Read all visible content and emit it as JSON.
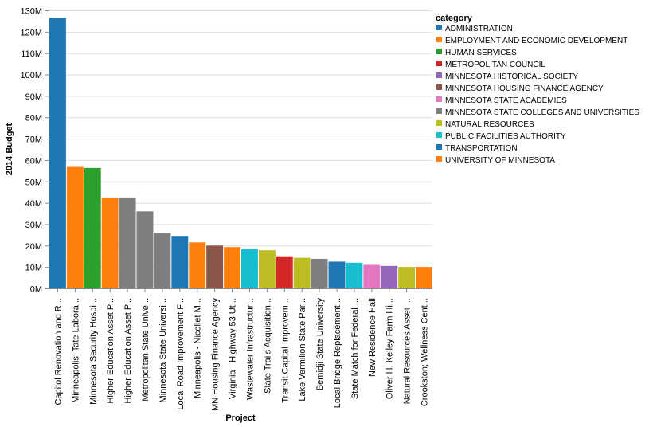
{
  "chart_data": {
    "type": "bar",
    "xlabel": "Project",
    "ylabel": "2014 Budget",
    "ylim": [
      0,
      130000000
    ],
    "yticks": [
      {
        "value": 0,
        "label": "0M"
      },
      {
        "value": 10000000,
        "label": "10M"
      },
      {
        "value": 20000000,
        "label": "20M"
      },
      {
        "value": 30000000,
        "label": "30M"
      },
      {
        "value": 40000000,
        "label": "40M"
      },
      {
        "value": 50000000,
        "label": "50M"
      },
      {
        "value": 60000000,
        "label": "60M"
      },
      {
        "value": 70000000,
        "label": "70M"
      },
      {
        "value": 80000000,
        "label": "80M"
      },
      {
        "value": 90000000,
        "label": "90M"
      },
      {
        "value": 100000000,
        "label": "100M"
      },
      {
        "value": 110000000,
        "label": "110M"
      },
      {
        "value": 120000000,
        "label": "120M"
      },
      {
        "value": 130000000,
        "label": "130M"
      }
    ],
    "grid": true,
    "legend": {
      "title": "category",
      "position": "right",
      "items": [
        {
          "label": "ADMINISTRATION",
          "color": "#1f77b4"
        },
        {
          "label": "EMPLOYMENT AND ECONOMIC DEVELOPMENT",
          "color": "#ff7f0e"
        },
        {
          "label": "HUMAN SERVICES",
          "color": "#2ca02c"
        },
        {
          "label": "METROPOLITAN COUNCIL",
          "color": "#d62728"
        },
        {
          "label": "MINNESOTA HISTORICAL SOCIETY",
          "color": "#9467bd"
        },
        {
          "label": "MINNESOTA HOUSING FINANCE AGENCY",
          "color": "#8c564b"
        },
        {
          "label": "MINNESOTA STATE ACADEMIES",
          "color": "#e377c2"
        },
        {
          "label": "MINNESOTA STATE COLLEGES AND UNIVERSITIES",
          "color": "#7f7f7f"
        },
        {
          "label": "NATURAL RESOURCES",
          "color": "#bcbd22"
        },
        {
          "label": "PUBLIC FACILITIES AUTHORITY",
          "color": "#17becf"
        },
        {
          "label": "TRANSPORTATION",
          "color": "#1f77b4"
        },
        {
          "label": "UNIVERSITY OF MINNESOTA",
          "color": "#ff7f0e"
        }
      ]
    },
    "bars": [
      {
        "project": "Capitol Renovation and R...",
        "value": 126500000,
        "category": "ADMINISTRATION",
        "color": "#1f77b4"
      },
      {
        "project": "Minneapolis; Tate Labora...",
        "value": 56800000,
        "category": "UNIVERSITY OF MINNESOTA",
        "color": "#ff7f0e"
      },
      {
        "project": "Minnesota Security Hospi...",
        "value": 56300000,
        "category": "HUMAN SERVICES",
        "color": "#2ca02c"
      },
      {
        "project": "Higher Education Asset P...",
        "value": 42500000,
        "category": "UNIVERSITY OF MINNESOTA",
        "color": "#ff7f0e"
      },
      {
        "project": "Higher Education Asset P...",
        "value": 42500000,
        "category": "MINNESOTA STATE COLLEGES AND UNIVERSITIES",
        "color": "#7f7f7f"
      },
      {
        "project": "Metropolitan State Unive...",
        "value": 36000000,
        "category": "MINNESOTA STATE COLLEGES AND UNIVERSITIES",
        "color": "#7f7f7f"
      },
      {
        "project": "Minnesota State Universi...",
        "value": 26000000,
        "category": "MINNESOTA STATE COLLEGES AND UNIVERSITIES",
        "color": "#7f7f7f"
      },
      {
        "project": "Local Road Improvement F...",
        "value": 24500000,
        "category": "TRANSPORTATION",
        "color": "#1f77b4"
      },
      {
        "project": "Minneapolis - Nicollet M...",
        "value": 21500000,
        "category": "EMPLOYMENT AND ECONOMIC DEVELOPMENT",
        "color": "#ff7f0e"
      },
      {
        "project": "MN Housing Finance Agency",
        "value": 20000000,
        "category": "MINNESOTA HOUSING FINANCE AGENCY",
        "color": "#8c564b"
      },
      {
        "project": "Virginia - Highway 53 Ut...",
        "value": 19300000,
        "category": "EMPLOYMENT AND ECONOMIC DEVELOPMENT",
        "color": "#ff7f0e"
      },
      {
        "project": "Wastewater Infrastructur...",
        "value": 18300000,
        "category": "PUBLIC FACILITIES AUTHORITY",
        "color": "#17becf"
      },
      {
        "project": "State Trails Acquisition...",
        "value": 17800000,
        "category": "NATURAL RESOURCES",
        "color": "#bcbd22"
      },
      {
        "project": "Transit Capital Improvem...",
        "value": 15000000,
        "category": "METROPOLITAN COUNCIL",
        "color": "#d62728"
      },
      {
        "project": "Lake Vermilion State Par...",
        "value": 14300000,
        "category": "NATURAL RESOURCES",
        "color": "#bcbd22"
      },
      {
        "project": "Bemidji State University",
        "value": 13800000,
        "category": "MINNESOTA STATE COLLEGES AND UNIVERSITIES",
        "color": "#7f7f7f"
      },
      {
        "project": "Local Bridge Replacement...",
        "value": 12500000,
        "category": "TRANSPORTATION",
        "color": "#1f77b4"
      },
      {
        "project": "State Match for Federal ...",
        "value": 12000000,
        "category": "PUBLIC FACILITIES AUTHORITY",
        "color": "#17becf"
      },
      {
        "project": "New Residence Hall",
        "value": 11000000,
        "category": "MINNESOTA STATE ACADEMIES",
        "color": "#e377c2"
      },
      {
        "project": "Oliver H. Kelley Farm Hi...",
        "value": 10500000,
        "category": "MINNESOTA HISTORICAL SOCIETY",
        "color": "#9467bd"
      },
      {
        "project": "Natural Resources Asset ...",
        "value": 10000000,
        "category": "NATURAL RESOURCES",
        "color": "#bcbd22"
      },
      {
        "project": "Crookston; Wellness Cent...",
        "value": 10000000,
        "category": "UNIVERSITY OF MINNESOTA",
        "color": "#ff7f0e"
      }
    ]
  }
}
